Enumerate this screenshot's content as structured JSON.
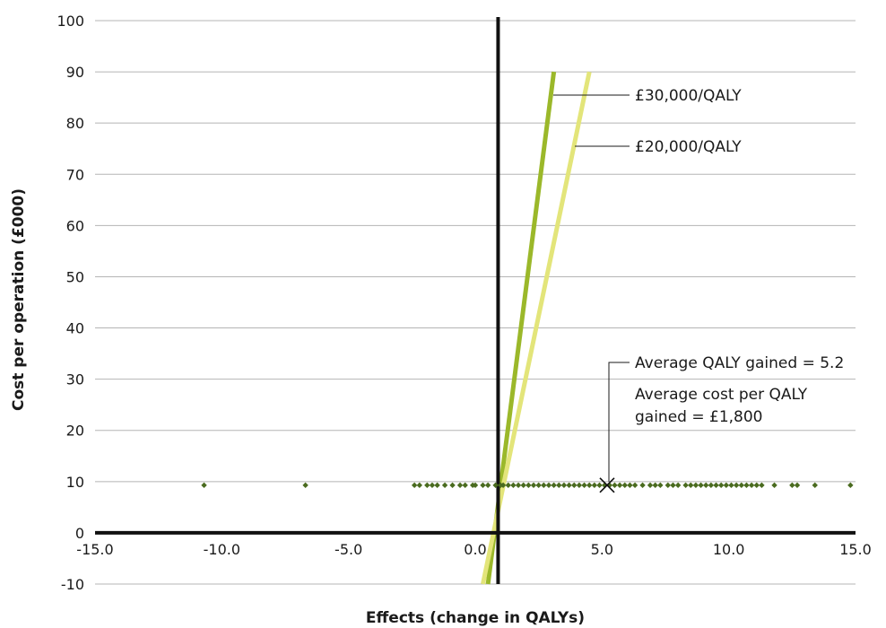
{
  "chart_data": {
    "type": "scatter",
    "title": "",
    "xlabel": "Effects (change in QALYs)",
    "ylabel": "Cost per operation (£000)",
    "xlim": [
      -15,
      15
    ],
    "ylim": [
      -10,
      100
    ],
    "x_ticks": [
      "-15.0",
      "-10.0",
      "-5.0",
      "0.0",
      "5.0",
      "10.0",
      "15.0"
    ],
    "y_ticks": [
      "-10",
      "0",
      "10",
      "20",
      "30",
      "40",
      "50",
      "60",
      "70",
      "80",
      "90",
      "100"
    ],
    "grid": "horizontal",
    "series": [
      {
        "type": "scatter",
        "color": "#4a6b1f",
        "y": 9.3,
        "x": [
          -10.7,
          -6.7,
          -2.4,
          -2.2,
          -1.9,
          -1.7,
          -1.5,
          -1.2,
          -0.9,
          -0.6,
          -0.4,
          -0.1,
          0.0,
          0.3,
          0.5,
          0.8,
          1.0,
          1.1,
          1.3,
          1.5,
          1.7,
          1.9,
          2.1,
          2.3,
          2.5,
          2.7,
          2.9,
          3.1,
          3.3,
          3.5,
          3.7,
          3.9,
          4.1,
          4.3,
          4.5,
          4.7,
          4.9,
          5.1,
          5.3,
          5.5,
          5.7,
          5.9,
          6.1,
          6.3,
          6.6,
          6.9,
          7.1,
          7.3,
          7.6,
          7.8,
          8.0,
          8.3,
          8.5,
          8.7,
          8.9,
          9.1,
          9.3,
          9.5,
          9.7,
          9.9,
          10.1,
          10.3,
          10.5,
          10.7,
          10.9,
          11.1,
          11.3,
          11.8,
          12.5,
          12.7,
          13.4,
          14.8
        ]
      },
      {
        "name": "£30,000/QALY",
        "type": "line",
        "color": "#9bb82a",
        "x": [
          0.5,
          3.1
        ],
        "y": [
          -10,
          90
        ]
      },
      {
        "name": "£20,000/QALY",
        "type": "line",
        "color": "#e3e57a",
        "x": [
          0.3,
          4.5
        ],
        "y": [
          -10,
          90
        ]
      }
    ],
    "mean_point": {
      "x": 5.2,
      "y": 9.3,
      "marker": "x"
    },
    "annotations": {
      "line30": "£30,000/QALY",
      "line20": "£20,000/QALY",
      "avg_qaly": "Average QALY gained = 5.2",
      "avg_cost_1": "Average cost per QALY",
      "avg_cost_2": "gained = £1,800"
    },
    "vertical_axis_at_x": 0.9
  }
}
